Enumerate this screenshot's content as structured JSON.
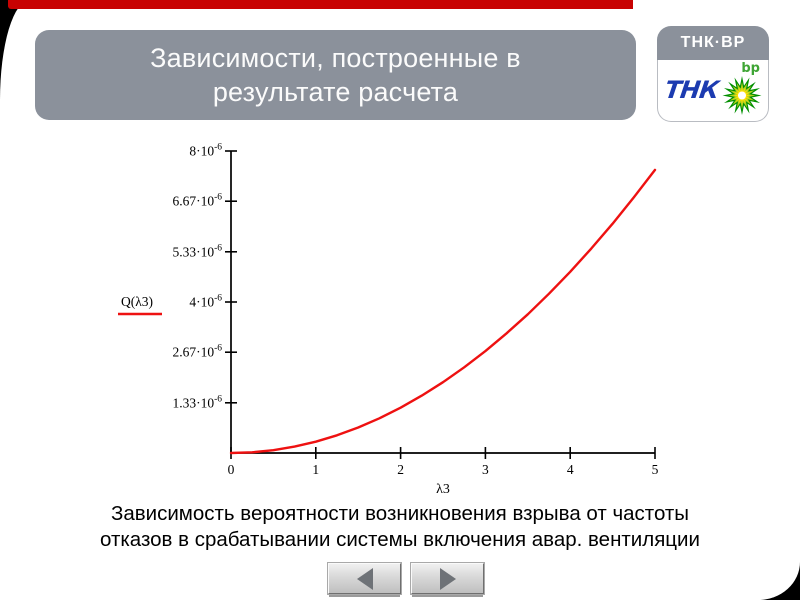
{
  "title": {
    "line1": "Зависимости, построенные в",
    "line2": "результате расчета"
  },
  "logo": {
    "header": "ТНК·ВР",
    "tnk": "ТНК",
    "bp": "bp"
  },
  "caption": {
    "line1": "Зависимость вероятности возникновения взрыва от частоты",
    "line2": "отказов в срабатывании системы включения авар. вентиляции"
  },
  "colors": {
    "banner": "#8b919b",
    "title_text": "#fbfbfb",
    "red_bar": "#c80202",
    "corner_black": "#000000",
    "curve_red": "#ee1111",
    "axis_black": "#000000",
    "tnk_blue": "#1c3bb0",
    "bp_green": "#3fa535",
    "helios_outer": "#008f00",
    "helios_mid": "#b0cf1f",
    "helios_inner": "#ffe000",
    "helios_center": "#ffffff",
    "button_arrow": "#6e7277",
    "caption_text": "#000000"
  },
  "chart_data": {
    "type": "line",
    "title": "",
    "xlabel": "λ3",
    "ylabel": "Q(λ3)",
    "legend_label": "Q(λ3)",
    "legend_position": "left-middle",
    "grid": false,
    "x_range": [
      0,
      5
    ],
    "y_range": [
      0,
      8e-06
    ],
    "x_ticks": [
      "0",
      "1",
      "2",
      "3",
      "4",
      "5"
    ],
    "y_ticks": [
      {
        "value": 1.33e-06,
        "mantissa": "1.33·10",
        "exponent": "-6"
      },
      {
        "value": 2.67e-06,
        "mantissa": "2.67·10",
        "exponent": "-6"
      },
      {
        "value": 4e-06,
        "mantissa": "4·10",
        "exponent": "-6"
      },
      {
        "value": 5.33e-06,
        "mantissa": "5.33·10",
        "exponent": "-6"
      },
      {
        "value": 6.67e-06,
        "mantissa": "6.67·10",
        "exponent": "-6"
      },
      {
        "value": 8e-06,
        "mantissa": "8·10",
        "exponent": "-6"
      }
    ],
    "series": [
      {
        "name": "Q(λ3)",
        "color": "#ee1111",
        "x": [
          0,
          0.25,
          0.5,
          0.75,
          1,
          1.25,
          1.5,
          1.75,
          2,
          2.25,
          2.5,
          2.75,
          3,
          3.25,
          3.5,
          3.75,
          4,
          4.25,
          4.5,
          4.75,
          5
        ],
        "y": [
          0,
          1.9e-08,
          7.5e-08,
          1.69e-07,
          3e-07,
          4.69e-07,
          6.75e-07,
          9.19e-07,
          1.2e-06,
          1.52e-06,
          1.875e-06,
          2.27e-06,
          2.7e-06,
          3.17e-06,
          3.675e-06,
          4.22e-06,
          4.8e-06,
          5.42e-06,
          6.075e-06,
          6.77e-06,
          7.5e-06
        ]
      }
    ]
  }
}
